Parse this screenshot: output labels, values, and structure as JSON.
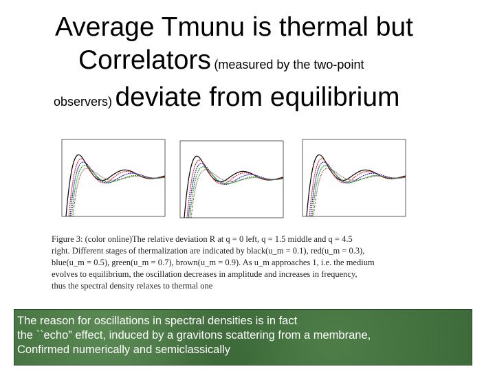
{
  "title": {
    "line1": "Average Tmunu is thermal but",
    "line2_big": "Correlators",
    "line2_small": "(measured by the two-point",
    "line3_small": "observers)",
    "line3_big": "deviate from equilibrium"
  },
  "caption": {
    "lines": [
      "Figure 3: (color online)The relative deviation R at q = 0 left, q = 1.5 middle and q = 4.5",
      "right. Different stages of thermalization are indicated by black(u_m = 0.1), red(u_m = 0.3),",
      "blue(u_m = 0.5), green(u_m = 0.7), brown(u_m = 0.9). As u_m approaches 1, i.e. the medium",
      "evolves to equilibrium, the oscillation decreases in amplitude and increases in frequency,",
      "thus the spectral density relaxes to thermal one"
    ]
  },
  "box": {
    "lines": [
      "The reason for oscillations in spectral densities is in fact",
      " the ``echo” effect, induced by a gravitons scattering from a membrane,",
      "Confirmed numerically and semiclassically"
    ]
  }
}
